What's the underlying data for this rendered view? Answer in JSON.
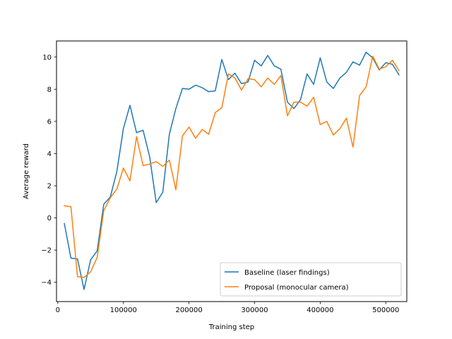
{
  "chart_data": {
    "type": "line",
    "title": "",
    "xlabel": "Training step",
    "ylabel": "Average reward",
    "xlim": [
      -2000,
      532000
    ],
    "ylim": [
      -5.2,
      11.0
    ],
    "xticks": [
      0,
      100000,
      200000,
      300000,
      400000,
      500000
    ],
    "yticks": [
      -4,
      -2,
      0,
      2,
      4,
      6,
      8,
      10
    ],
    "grid": false,
    "legend_position": "lower-right",
    "x": [
      10000,
      20000,
      30000,
      40000,
      50000,
      60000,
      70000,
      80000,
      90000,
      100000,
      110000,
      120000,
      130000,
      140000,
      150000,
      160000,
      170000,
      180000,
      190000,
      200000,
      210000,
      220000,
      230000,
      240000,
      250000,
      260000,
      270000,
      280000,
      290000,
      300000,
      310000,
      320000,
      330000,
      340000,
      350000,
      360000,
      370000,
      380000,
      390000,
      400000,
      410000,
      420000,
      430000,
      440000,
      450000,
      460000,
      470000,
      480000,
      490000,
      500000,
      510000,
      520000
    ],
    "series": [
      {
        "name": "Baseline (laser findings)",
        "color": "#1f77b4",
        "values": [
          -0.35,
          -2.5,
          -2.55,
          -4.45,
          -2.6,
          -2.05,
          0.85,
          1.3,
          2.9,
          5.55,
          7.0,
          5.3,
          5.45,
          3.8,
          0.95,
          1.6,
          5.2,
          6.8,
          8.05,
          8.0,
          8.25,
          8.1,
          7.85,
          7.9,
          9.85,
          8.6,
          9.0,
          8.35,
          8.45,
          9.8,
          9.45,
          10.1,
          9.45,
          9.25,
          7.2,
          6.8,
          7.35,
          8.95,
          8.3,
          9.95,
          8.45,
          8.05,
          8.7,
          9.05,
          9.7,
          9.5,
          10.3,
          9.95,
          9.2,
          9.65,
          9.55,
          8.9
        ]
      },
      {
        "name": "Proposal (monocular camera)",
        "color": "#ff7f0e",
        "values": [
          0.75,
          0.7,
          -3.65,
          -3.7,
          -3.35,
          -2.45,
          0.45,
          1.25,
          1.8,
          3.1,
          2.3,
          5.05,
          3.25,
          3.35,
          3.5,
          3.2,
          3.6,
          1.75,
          5.1,
          5.65,
          4.95,
          5.5,
          5.2,
          6.55,
          6.85,
          8.95,
          8.7,
          7.95,
          8.65,
          8.6,
          8.15,
          8.7,
          8.3,
          8.85,
          6.35,
          7.2,
          7.2,
          6.95,
          7.5,
          5.8,
          6.0,
          5.15,
          5.55,
          6.2,
          4.4,
          7.6,
          8.15,
          10.05,
          9.25,
          9.4,
          9.8,
          9.15
        ]
      }
    ]
  }
}
